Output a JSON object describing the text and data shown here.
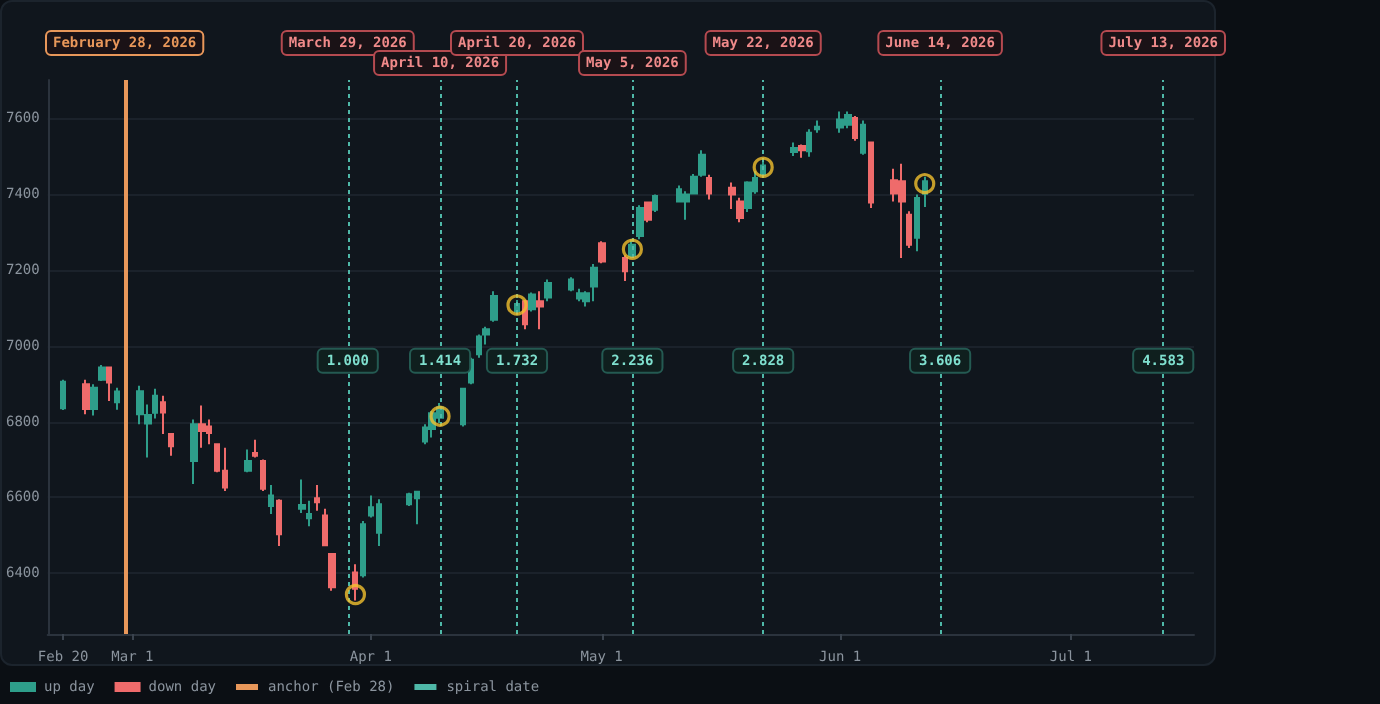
{
  "chart_data": {
    "type": "candlestick",
    "xlim": [
      "2026-02-18",
      "2026-07-17"
    ],
    "xticks": [
      {
        "value": "2026-02-20",
        "label": "Feb 20"
      },
      {
        "value": "2026-03-01",
        "label": "Mar 1"
      },
      {
        "value": "2026-04-01",
        "label": "Apr 1"
      },
      {
        "value": "2026-05-01",
        "label": "May 1"
      },
      {
        "value": "2026-06-01",
        "label": "Jun 1"
      },
      {
        "value": "2026-07-01",
        "label": "Jul 1"
      }
    ],
    "ylim": [
      6240,
      7700
    ],
    "yticks": [
      6400,
      6600,
      6800,
      7000,
      7200,
      7400,
      7600
    ],
    "grid": "y",
    "legend": "bottom left",
    "series": [
      {
        "name": "up day",
        "type": "candlestick",
        "color": "#2e9e8a",
        "x": [
          "2026-02-20",
          "2026-02-24",
          "2026-02-25",
          "2026-02-27",
          "2026-03-02",
          "2026-03-03",
          "2026-03-04",
          "2026-03-09",
          "2026-03-16",
          "2026-03-19",
          "2026-03-23",
          "2026-03-24",
          "2026-03-31",
          "2026-04-01",
          "2026-04-02",
          "2026-04-06",
          "2026-04-07",
          "2026-04-08",
          "2026-04-09",
          "2026-04-10",
          "2026-04-13",
          "2026-04-14",
          "2026-04-15",
          "2026-04-16",
          "2026-04-17",
          "2026-04-20",
          "2026-04-22",
          "2026-04-24",
          "2026-04-27",
          "2026-04-28",
          "2026-04-29",
          "2026-04-30",
          "2026-05-05",
          "2026-05-06",
          "2026-05-08",
          "2026-05-11",
          "2026-05-12",
          "2026-05-13",
          "2026-05-14",
          "2026-05-20",
          "2026-05-21",
          "2026-05-22",
          "2026-05-26",
          "2026-05-28",
          "2026-05-29",
          "2026-06-01",
          "2026-06-02",
          "2026-06-04",
          "2026-06-11",
          "2026-06-12"
        ],
        "ohlc": [
          [
            6835,
            6910,
            6830,
            6905
          ],
          [
            6833,
            6898,
            6816,
            6889
          ],
          [
            6910,
            6949,
            6907,
            6942
          ],
          [
            6851,
            6889,
            6831,
            6879
          ],
          [
            6819,
            6894,
            6793,
            6880
          ],
          [
            6795,
            6845,
            6705,
            6817
          ],
          [
            6823,
            6886,
            6808,
            6868
          ],
          [
            6696,
            6805,
            6635,
            6793
          ],
          [
            6670,
            6726,
            6666,
            6696
          ],
          [
            6577,
            6633,
            6556,
            6605
          ],
          [
            6570,
            6647,
            6559,
            6580
          ],
          [
            6545,
            6591,
            6524,
            6556
          ],
          [
            6395,
            6538,
            6389,
            6529
          ],
          [
            6552,
            6605,
            6547,
            6574
          ],
          [
            6507,
            6595,
            6472,
            6582
          ],
          [
            6582,
            6612,
            6577,
            6608
          ],
          [
            6598,
            6615,
            6529,
            6615
          ],
          [
            6747,
            6793,
            6740,
            6784
          ],
          [
            6780,
            6828,
            6758,
            6822
          ],
          [
            6810,
            6849,
            6796,
            6837
          ],
          [
            6793,
            6889,
            6787,
            6886
          ],
          [
            6903,
            6968,
            6898,
            6963
          ],
          [
            6977,
            7029,
            6968,
            7024
          ],
          [
            7029,
            7050,
            7003,
            7043
          ],
          [
            7068,
            7143,
            7063,
            7131
          ],
          [
            7090,
            7120,
            7080,
            7110
          ],
          [
            7096,
            7140,
            7090,
            7135
          ],
          [
            7127,
            7174,
            7117,
            7165
          ],
          [
            7148,
            7180,
            7143,
            7174
          ],
          [
            7124,
            7150,
            7117,
            7138
          ],
          [
            7117,
            7143,
            7103,
            7138
          ],
          [
            7156,
            7215,
            7117,
            7205
          ],
          [
            7237,
            7280,
            7230,
            7266
          ],
          [
            7289,
            7370,
            7280,
            7363
          ],
          [
            7358,
            7398,
            7352,
            7394
          ],
          [
            7380,
            7422,
            7377,
            7412
          ],
          [
            7380,
            7407,
            7332,
            7398
          ],
          [
            7401,
            7452,
            7398,
            7445
          ],
          [
            7450,
            7515,
            7445,
            7503
          ],
          [
            7363,
            7433,
            7352,
            7430
          ],
          [
            7407,
            7460,
            7400,
            7442
          ],
          [
            7450,
            7490,
            7445,
            7475
          ],
          [
            7510,
            7535,
            7500,
            7521
          ],
          [
            7512,
            7570,
            7498,
            7561
          ],
          [
            7570,
            7593,
            7561,
            7577
          ],
          [
            7575,
            7617,
            7561,
            7596
          ],
          [
            7582,
            7617,
            7573,
            7608
          ],
          [
            7508,
            7593,
            7503,
            7582
          ],
          [
            7284,
            7398,
            7249,
            7389
          ],
          [
            7400,
            7445,
            7365,
            7433
          ]
        ]
      },
      {
        "name": "down day",
        "type": "candlestick",
        "color": "#ef6b6b",
        "x": [
          "2026-02-23",
          "2026-02-26",
          "2026-03-05",
          "2026-03-06",
          "2026-03-10",
          "2026-03-11",
          "2026-03-12",
          "2026-03-13",
          "2026-03-17",
          "2026-03-18",
          "2026-03-20",
          "2026-03-25",
          "2026-03-26",
          "2026-03-27",
          "2026-03-30",
          "2026-04-21",
          "2026-04-23",
          "2026-05-01",
          "2026-05-04",
          "2026-05-07",
          "2026-05-15",
          "2026-05-18",
          "2026-05-19",
          "2026-05-27",
          "2026-06-03",
          "2026-06-05",
          "2026-06-08",
          "2026-06-09",
          "2026-06-10"
        ],
        "ohlc": [
          [
            6898,
            6910,
            6819,
            6833
          ],
          [
            6942,
            6945,
            6854,
            6903
          ],
          [
            6851,
            6868,
            6767,
            6824
          ],
          [
            6767,
            6770,
            6710,
            6735
          ],
          [
            6793,
            6842,
            6731,
            6775
          ],
          [
            6787,
            6805,
            6740,
            6770
          ],
          [
            6740,
            6740,
            6666,
            6670
          ],
          [
            6670,
            6731,
            6617,
            6626
          ],
          [
            6717,
            6752,
            6705,
            6710
          ],
          [
            6696,
            6700,
            6617,
            6623
          ],
          [
            6591,
            6595,
            6472,
            6503
          ],
          [
            6598,
            6633,
            6565,
            6587
          ],
          [
            6552,
            6570,
            6472,
            6474
          ],
          [
            6451,
            6451,
            6354,
            6363
          ],
          [
            6402,
            6424,
            6328,
            6359
          ],
          [
            7117,
            7120,
            7043,
            7056
          ],
          [
            7117,
            7143,
            7043,
            7103
          ],
          [
            7270,
            7275,
            7217,
            7222
          ],
          [
            7231,
            7238,
            7170,
            7196
          ],
          [
            7377,
            7380,
            7325,
            7332
          ],
          [
            7442,
            7450,
            7385,
            7401
          ],
          [
            7416,
            7430,
            7360,
            7398
          ],
          [
            7380,
            7390,
            7325,
            7336
          ],
          [
            7526,
            7530,
            7495,
            7515
          ],
          [
            7600,
            7605,
            7540,
            7547
          ],
          [
            7535,
            7535,
            7363,
            7377
          ],
          [
            7436,
            7466,
            7380,
            7401
          ],
          [
            7433,
            7479,
            7231,
            7380
          ],
          [
            7345,
            7354,
            7257,
            7266
          ]
        ]
      },
      {
        "type": "scatter",
        "marker": "circle",
        "color": "#f2c12e",
        "x": [
          "2026-03-30",
          "2026-04-10",
          "2026-04-20",
          "2026-05-05",
          "2026-05-22",
          "2026-06-12"
        ],
        "values": [
          6344,
          6814,
          7107,
          7254,
          7470,
          7427
        ]
      }
    ],
    "ref_lines": [
      {
        "axis": "x",
        "value": "2026-02-28",
        "label": "February 28, 2026",
        "color": "#e8975a",
        "line_style": "solid"
      },
      {
        "axis": "x",
        "value": "2026-03-29",
        "label": "March 29, 2026",
        "color": "#4fb8a8",
        "line_style": "dotted"
      },
      {
        "axis": "x",
        "value": "2026-04-10",
        "label": "April 10, 2026",
        "color": "#4fb8a8",
        "line_style": "dotted"
      },
      {
        "axis": "x",
        "value": "2026-04-20",
        "label": "April 20, 2026",
        "color": "#4fb8a8",
        "line_style": "dotted"
      },
      {
        "axis": "x",
        "value": "2026-05-05",
        "label": "May 5, 2026",
        "color": "#4fb8a8",
        "line_style": "dotted"
      },
      {
        "axis": "x",
        "value": "2026-05-22",
        "label": "May 22, 2026",
        "color": "#4fb8a8",
        "line_style": "dotted"
      },
      {
        "axis": "x",
        "value": "2026-06-14",
        "label": "June 14, 2026",
        "color": "#4fb8a8",
        "line_style": "dotted"
      },
      {
        "axis": "x",
        "value": "2026-07-13",
        "label": "July 13, 2026",
        "color": "#4fb8a8",
        "line_style": "dotted"
      }
    ],
    "annotations": [
      "anchor (Feb 28)",
      "spiral date",
      {
        "text": "1.000",
        "x": "2026-03-29",
        "y": 6960
      },
      {
        "text": "1.414",
        "x": "2026-04-10",
        "y": 6960
      },
      {
        "text": "1.732",
        "x": "2026-04-20",
        "y": 6960
      },
      {
        "text": "2.236",
        "x": "2026-05-05",
        "y": 6960
      },
      {
        "text": "2.828",
        "x": "2026-05-22",
        "y": 6960
      },
      {
        "text": "3.606",
        "x": "2026-06-14",
        "y": 6960
      },
      {
        "text": "4.583",
        "x": "2026-07-13",
        "y": 6960
      }
    ]
  }
}
